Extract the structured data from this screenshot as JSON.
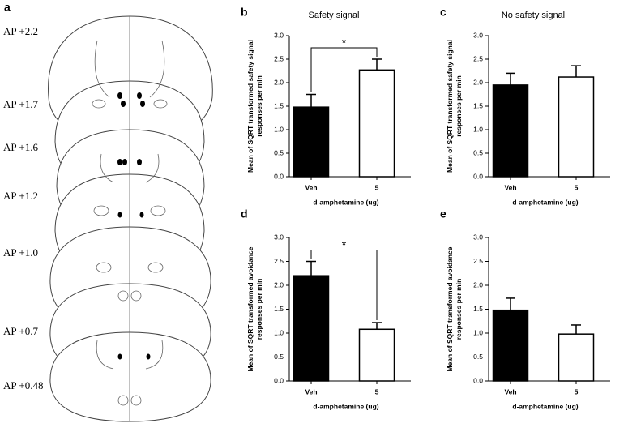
{
  "panel_a": {
    "label": "a",
    "sections": [
      "AP +2.2",
      "AP +1.7",
      "AP +1.6",
      "AP +1.2",
      "AP +1.0",
      "AP +0.7",
      "AP +0.48"
    ]
  },
  "chart_data": [
    {
      "type": "bar",
      "panel_label": "b",
      "title": "Safety signal",
      "categories": [
        "Veh",
        "5"
      ],
      "values": [
        1.48,
        2.27
      ],
      "errors": [
        0.27,
        0.23
      ],
      "colors": [
        "#000000",
        "#ffffff"
      ],
      "ylabel": [
        "Mean of SQRT transformed safety signal",
        "responses per min"
      ],
      "xlabel": "d-amphetamine (ug)",
      "annotation": "*",
      "ylim": [
        0,
        3
      ],
      "yticks": [
        {
          "value": 0,
          "label": "0.0"
        },
        0.5,
        {
          "value": 1,
          "label": "1.0"
        },
        1.5,
        {
          "value": 2,
          "label": "2.0"
        },
        2.5,
        {
          "value": 3,
          "label": "3.0"
        }
      ]
    },
    {
      "type": "bar",
      "panel_label": "c",
      "title": "No safety signal",
      "categories": [
        "Veh",
        "5"
      ],
      "values": [
        1.95,
        2.12
      ],
      "errors": [
        0.25,
        0.24
      ],
      "colors": [
        "#000000",
        "#ffffff"
      ],
      "ylabel": [
        "Mean of SQRT transformed safety signal",
        "responses per min"
      ],
      "xlabel": "d-amphetamine (ug)",
      "ylim": [
        0,
        3
      ],
      "yticks": [
        {
          "value": 0,
          "label": "0.0"
        },
        0.5,
        {
          "value": 1,
          "label": "1.0"
        },
        1.5,
        {
          "value": 2,
          "label": "2.0"
        },
        2.5,
        {
          "value": 3,
          "label": "3.0"
        }
      ]
    },
    {
      "type": "bar",
      "panel_label": "d",
      "categories": [
        "Veh",
        "5"
      ],
      "values": [
        2.2,
        1.08
      ],
      "errors": [
        0.3,
        0.14
      ],
      "colors": [
        "#000000",
        "#ffffff"
      ],
      "ylabel": [
        "Mean of SQRT transformed avoidance",
        "responses per min"
      ],
      "xlabel": "d-amphetamine (ug)",
      "annotation": "*",
      "ylim": [
        0,
        3
      ],
      "yticks": [
        {
          "value": 0,
          "label": "0.0"
        },
        0.5,
        {
          "value": 1,
          "label": "1.0"
        },
        1.5,
        {
          "value": 2,
          "label": "2.0"
        },
        2.5,
        {
          "value": 3,
          "label": "3.0"
        }
      ]
    },
    {
      "type": "bar",
      "panel_label": "e",
      "categories": [
        "Veh",
        "5"
      ],
      "values": [
        1.48,
        0.98
      ],
      "errors": [
        0.25,
        0.19
      ],
      "colors": [
        "#000000",
        "#ffffff"
      ],
      "ylabel": [
        "Mean of SQRT transformed avoidance",
        "responses per min"
      ],
      "xlabel": "d-amphetamine (ug)",
      "ylim": [
        0,
        3
      ],
      "yticks": [
        {
          "value": 0,
          "label": "0.0"
        },
        0.5,
        {
          "value": 1,
          "label": "1.0"
        },
        1.5,
        {
          "value": 2,
          "label": "2.0"
        },
        2.5,
        {
          "value": 3,
          "label": "3.0"
        }
      ]
    }
  ]
}
